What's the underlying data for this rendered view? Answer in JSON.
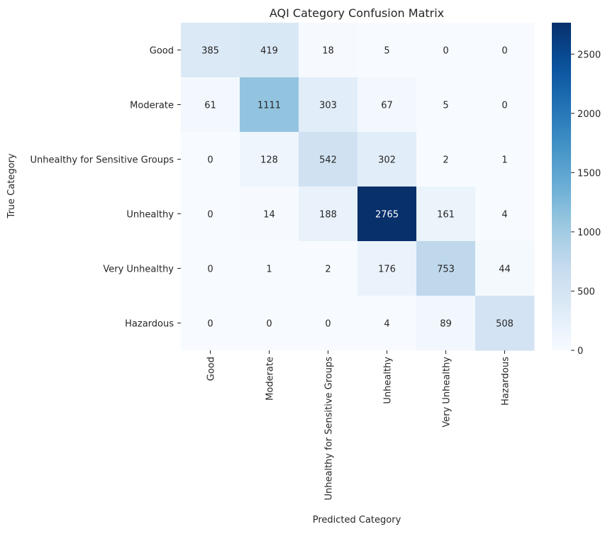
{
  "chart_data": {
    "type": "heatmap",
    "title": "AQI Category Confusion Matrix",
    "xlabel": "Predicted Category",
    "ylabel": "True Category",
    "x_categories": [
      "Good",
      "Moderate",
      "Unhealthy for Sensitive Groups",
      "Unhealthy",
      "Very Unhealthy",
      "Hazardous"
    ],
    "y_categories": [
      "Good",
      "Moderate",
      "Unhealthy for Sensitive Groups",
      "Unhealthy",
      "Very Unhealthy",
      "Hazardous"
    ],
    "values": [
      [
        385,
        419,
        18,
        5,
        0,
        0
      ],
      [
        61,
        1111,
        303,
        67,
        5,
        0
      ],
      [
        0,
        128,
        542,
        302,
        2,
        1
      ],
      [
        0,
        14,
        188,
        2765,
        161,
        4
      ],
      [
        0,
        1,
        2,
        176,
        753,
        44
      ],
      [
        0,
        0,
        0,
        4,
        89,
        508
      ]
    ],
    "colormap": "Blues",
    "vmin": 0,
    "vmax": 2765,
    "colorbar_ticks": [
      0,
      500,
      1000,
      1500,
      2000,
      2500
    ],
    "grid": false
  }
}
